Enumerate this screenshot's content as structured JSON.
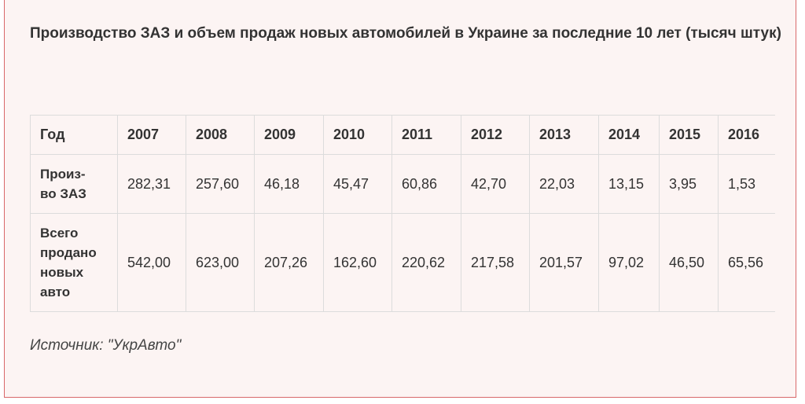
{
  "title": "Производство ЗАЗ и объем продаж новых автомобилей в Украине за последние 10 лет (тысяч штук)",
  "table": {
    "header": [
      "Год",
      "2007",
      "2008",
      "2009",
      "2010",
      "2011",
      "2012",
      "2013",
      "2014",
      "2015",
      "2016"
    ],
    "rows": [
      [
        "Произ-во ЗАЗ",
        "282,31",
        "257,60",
        "46,18",
        "45,47",
        "60,86",
        "42,70",
        "22,03",
        "13,15",
        "3,95",
        "1,53"
      ],
      [
        "Всего продано новых авто",
        "542,00",
        "623,00",
        "207,26",
        "162,60",
        "220,62",
        "217,58",
        "201,57",
        "97,02",
        "46,50",
        "65,56"
      ]
    ]
  },
  "source": "Источник: \"УкрАвто\""
}
